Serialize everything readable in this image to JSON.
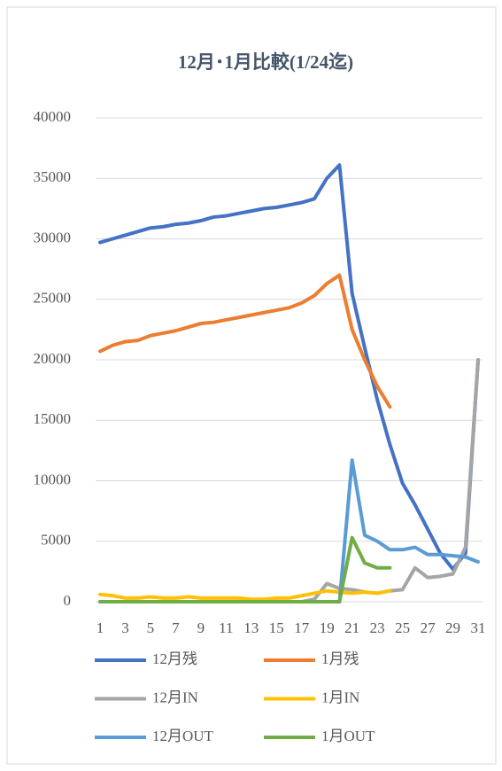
{
  "chart_data": {
    "type": "line",
    "title": "12月･1月比較(1/24迄)",
    "categories": [
      "1",
      null,
      "3",
      null,
      "5",
      null,
      "7",
      null,
      "9",
      null,
      "11",
      null,
      "13",
      null,
      "15",
      null,
      "17",
      null,
      "19",
      null,
      "21",
      null,
      "23",
      null,
      "25",
      null,
      "27",
      null,
      "29",
      null,
      "31"
    ],
    "ylim": [
      0,
      40000
    ],
    "yticks": [
      0,
      5000,
      10000,
      15000,
      20000,
      25000,
      30000,
      35000,
      40000
    ],
    "grid": true,
    "series": [
      {
        "name": "12月残",
        "color": "#4472c4",
        "values": [
          29700,
          30000,
          30300,
          30600,
          30900,
          31000,
          31200,
          31300,
          31500,
          31800,
          31900,
          32100,
          32300,
          32500,
          32600,
          32800,
          33000,
          33300,
          35000,
          36100,
          25500,
          21000,
          16700,
          13000,
          9800,
          8000,
          6000,
          4000,
          2700,
          4000,
          20000
        ]
      },
      {
        "name": "1月残",
        "color": "#ed7d31",
        "values": [
          20700,
          21200,
          21500,
          21600,
          22000,
          22200,
          22400,
          22700,
          23000,
          23100,
          23300,
          23500,
          23700,
          23900,
          24100,
          24300,
          24700,
          25300,
          26300,
          27000,
          22500,
          20000,
          17800,
          16100,
          null,
          null,
          null,
          null,
          null,
          null,
          null
        ]
      },
      {
        "name": "12月IN",
        "color": "#a5a5a5",
        "values": [
          0,
          0,
          0,
          0,
          0,
          0,
          0,
          0,
          0,
          0,
          0,
          0,
          0,
          0,
          0,
          0,
          0,
          200,
          1500,
          1100,
          1000,
          800,
          700,
          900,
          1000,
          2800,
          2000,
          2100,
          2300,
          4500,
          20000
        ]
      },
      {
        "name": "1月IN",
        "color": "#ffc000",
        "values": [
          600,
          500,
          300,
          300,
          400,
          300,
          300,
          400,
          300,
          300,
          300,
          300,
          200,
          200,
          300,
          300,
          500,
          700,
          900,
          800,
          700,
          800,
          700,
          900,
          null,
          null,
          null,
          null,
          null,
          null,
          null
        ]
      },
      {
        "name": "12月OUT",
        "color": "#5b9bd5",
        "values": [
          0,
          0,
          0,
          0,
          0,
          0,
          0,
          0,
          0,
          0,
          0,
          0,
          0,
          0,
          0,
          0,
          0,
          0,
          0,
          0,
          11700,
          5500,
          5000,
          4300,
          4300,
          4500,
          3900,
          3900,
          3800,
          3700,
          3300
        ]
      },
      {
        "name": "1月OUT",
        "color": "#70ad47",
        "values": [
          0,
          0,
          0,
          0,
          0,
          0,
          0,
          0,
          0,
          0,
          0,
          0,
          0,
          0,
          0,
          0,
          0,
          0,
          0,
          0,
          5300,
          3200,
          2800,
          2800,
          null,
          null,
          null,
          null,
          null,
          null,
          null
        ]
      }
    ]
  }
}
